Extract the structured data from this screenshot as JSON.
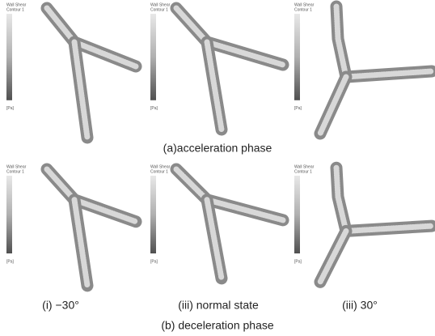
{
  "figure": {
    "rows": [
      {
        "caption": "(a)acceleration phase",
        "panels": [
          {
            "legend_title": "Wall Shear",
            "legend_subtitle": "Contour 1",
            "unit": "[Pa]"
          },
          {
            "legend_title": "Wall Shear",
            "legend_subtitle": "Contour 1",
            "unit": "[Pa]"
          },
          {
            "legend_title": "Wall Shear",
            "legend_subtitle": "Contour 1",
            "unit": "[Pa]"
          }
        ]
      },
      {
        "caption": "(b) deceleration phase",
        "panels": [
          {
            "legend_title": "Wall Shear",
            "legend_subtitle": "Contour 1",
            "unit": "[Pa]"
          },
          {
            "legend_title": "Wall Shear",
            "legend_subtitle": "Contour 1",
            "unit": "[Pa]"
          },
          {
            "legend_title": "Wall Shear",
            "legend_subtitle": "Contour 1",
            "unit": "[Pa]"
          }
        ]
      }
    ],
    "panel_labels": [
      "(i) −30°",
      "(iii) normal state",
      "(iii) 30°"
    ]
  }
}
